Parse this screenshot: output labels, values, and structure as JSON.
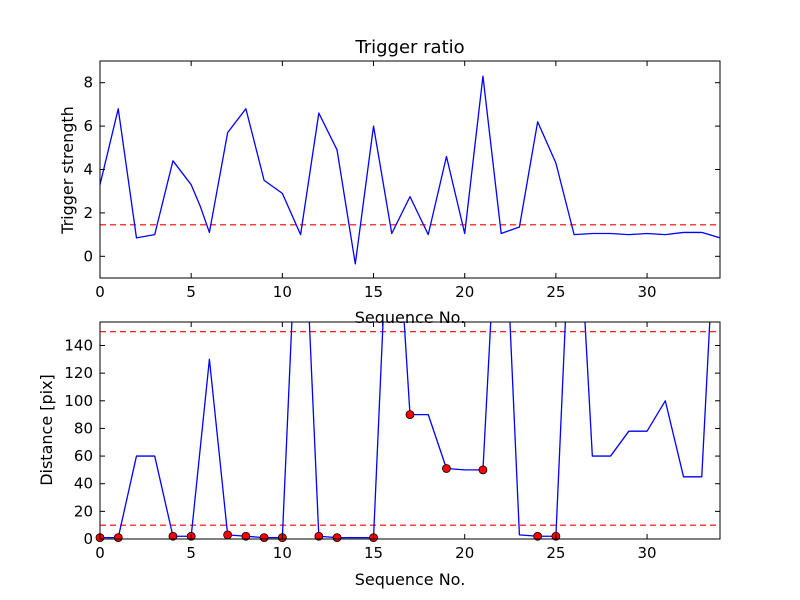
{
  "chart_data": [
    {
      "type": "line",
      "title": "Trigger ratio",
      "xlabel": "Sequence No.",
      "ylabel": "Trigger strength",
      "xlim": [
        0,
        34
      ],
      "ylim": [
        -1,
        9
      ],
      "xticks": [
        0,
        5,
        10,
        15,
        20,
        25,
        30
      ],
      "yticks": [
        0,
        2,
        4,
        6,
        8
      ],
      "series": [
        {
          "color": "#0000ff",
          "x": [
            0,
            1,
            2,
            3,
            4,
            5,
            5.5,
            6,
            7,
            8,
            9,
            10,
            11,
            12,
            13,
            14,
            15,
            16,
            17,
            18,
            19,
            20,
            21,
            22,
            23,
            24,
            25,
            26,
            27,
            28,
            29,
            30,
            31,
            32,
            33,
            34
          ],
          "y": [
            3.3,
            6.8,
            0.85,
            1.0,
            4.4,
            3.3,
            2.3,
            1.1,
            5.7,
            6.8,
            3.5,
            2.9,
            1.0,
            6.6,
            4.9,
            -0.35,
            6.0,
            1.05,
            2.75,
            1.0,
            4.6,
            1.05,
            8.3,
            1.05,
            1.35,
            6.2,
            4.3,
            1.0,
            1.05,
            1.05,
            1.0,
            1.05,
            1.0,
            1.1,
            1.1,
            0.85
          ]
        }
      ],
      "threshold": {
        "y": 1.45,
        "color": "#ff0000",
        "style": "dashed"
      }
    },
    {
      "type": "line",
      "title": "",
      "xlabel": "Sequence No.",
      "ylabel": "Distance [pix]",
      "xlim": [
        0,
        34
      ],
      "ylim": [
        0,
        157
      ],
      "xticks": [
        0,
        5,
        10,
        15,
        20,
        25,
        30
      ],
      "yticks": [
        0,
        20,
        40,
        60,
        80,
        100,
        120,
        140
      ],
      "series": [
        {
          "color": "#0000ff",
          "x": [
            0,
            1,
            2,
            3,
            4,
            5,
            6,
            7,
            8,
            9,
            10,
            11,
            12,
            13,
            14,
            15,
            16,
            17,
            18,
            19,
            20,
            21,
            22,
            23,
            24,
            25,
            26,
            27,
            28,
            29,
            30,
            31,
            32,
            33,
            34
          ],
          "y": [
            1,
            1,
            60,
            60,
            2,
            2,
            130,
            3,
            2,
            1,
            1,
            300,
            2,
            1,
            1,
            1,
            300,
            90,
            90,
            51,
            50,
            50,
            300,
            3,
            2,
            2,
            300,
            60,
            60,
            78,
            78,
            100,
            45,
            45,
            300
          ]
        }
      ],
      "markers": {
        "color": "#ff0000",
        "x": [
          0,
          1,
          4,
          5,
          7,
          8,
          9,
          10,
          12,
          13,
          15,
          17,
          19,
          21,
          24,
          25
        ],
        "y": [
          1,
          1,
          2,
          2,
          3,
          2,
          1,
          1,
          2,
          1,
          1,
          90,
          51,
          50,
          2,
          2
        ]
      },
      "thresholds": [
        {
          "y": 150,
          "color": "#ff0000",
          "style": "dashed"
        },
        {
          "y": 10,
          "color": "#ff0000",
          "style": "dashed"
        }
      ]
    }
  ]
}
